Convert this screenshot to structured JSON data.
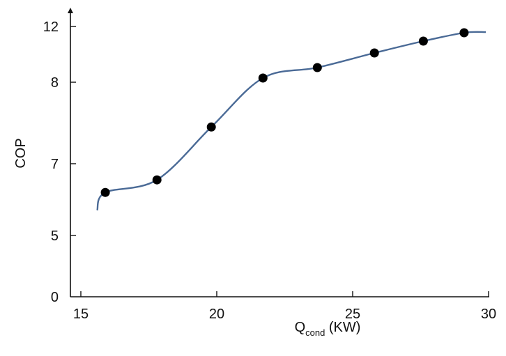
{
  "chart_data": {
    "type": "line",
    "xlabel": "Q",
    "xlabel_subscript": "cond",
    "xlabel_suffix": " (KW)",
    "ylabel": "COP",
    "x_ticks": [
      {
        "value": 15,
        "label": "15"
      },
      {
        "value": 20,
        "label": "20"
      },
      {
        "value": 25,
        "label": "25"
      },
      {
        "value": 30,
        "label": "30"
      }
    ],
    "y_ticks": [
      {
        "value": 0,
        "label": "0"
      },
      {
        "value": 5,
        "label": "5"
      },
      {
        "value": 7,
        "label": "7"
      },
      {
        "value": 8,
        "label": "8"
      },
      {
        "value": 12,
        "label": "12"
      }
    ],
    "y_scale_note": "Non-uniform tick spacing as printed; each labeled tick interval is treated as equal height and values interpolated linearly within intervals.",
    "xlim": [
      15,
      30
    ],
    "series": [
      {
        "color": "#4a6a96",
        "marker_color": "#000000",
        "x": [
          15.6,
          15.9,
          17.8,
          19.8,
          21.7,
          23.7,
          25.8,
          27.6,
          29.1,
          29.9
        ],
        "y": [
          5.7,
          6.2,
          6.55,
          7.45,
          8.3,
          9.05,
          10.1,
          10.95,
          11.55,
          11.6
        ],
        "markers": [
          false,
          true,
          true,
          true,
          true,
          true,
          true,
          true,
          true,
          false
        ]
      }
    ],
    "grid": false,
    "legend": "none"
  }
}
